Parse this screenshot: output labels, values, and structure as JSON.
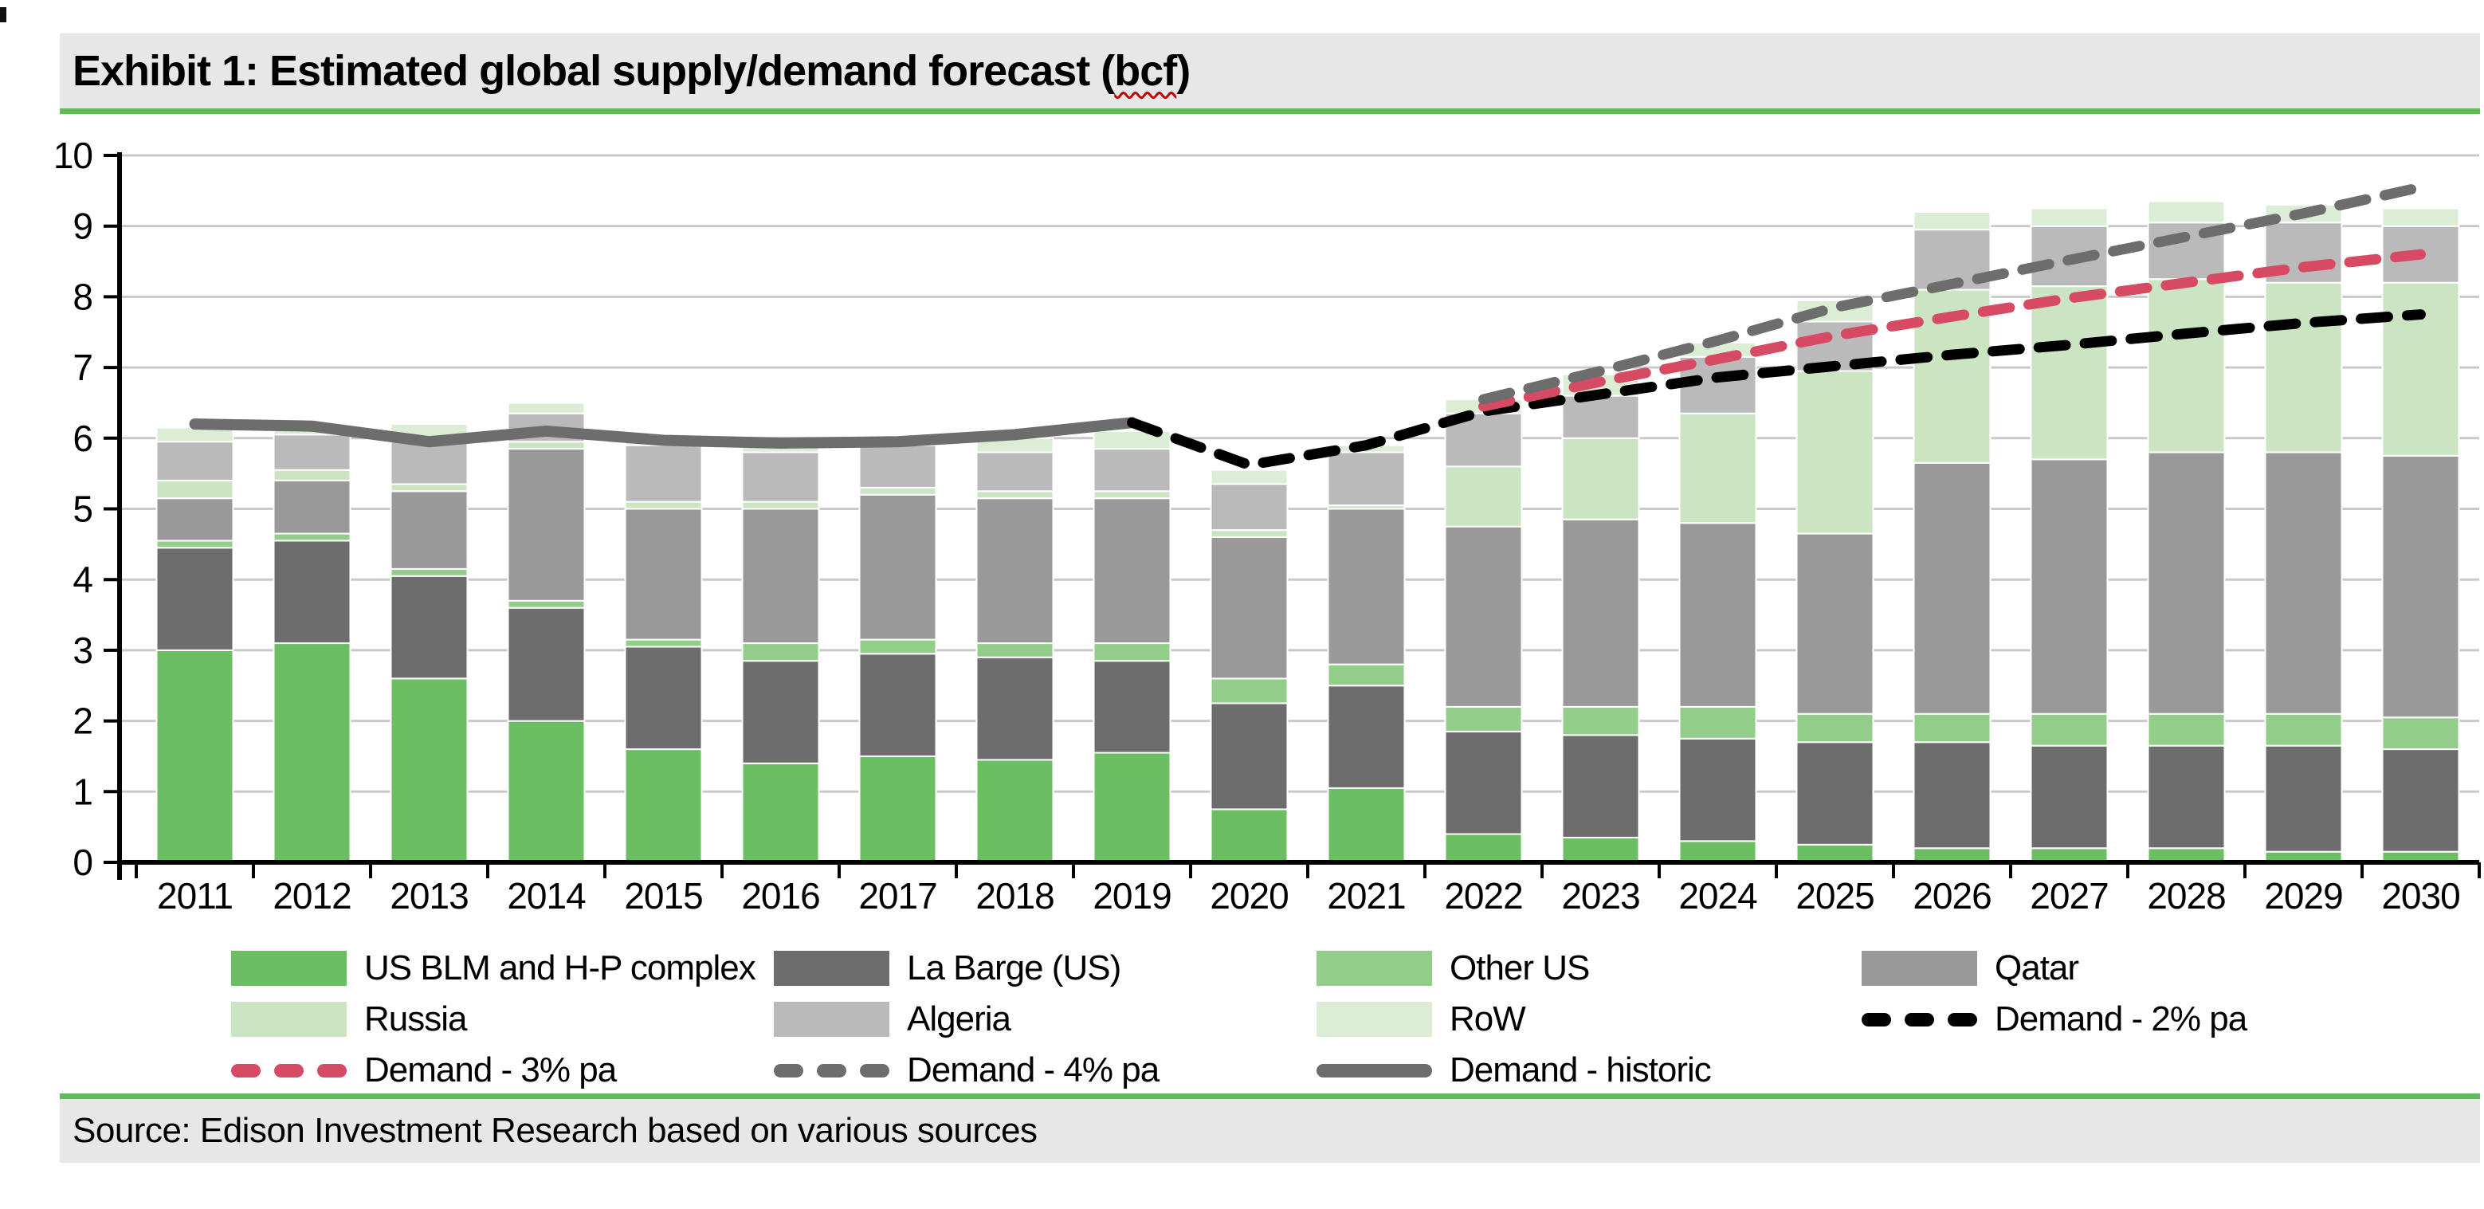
{
  "title": {
    "prefix": "Exhibit 1: Estimated global supply/demand forecast (",
    "underlined": "bcf",
    "suffix": ")"
  },
  "source": "Source: Edison Investment Research based on various sources",
  "colors": {
    "us_blm": "#6CBE63",
    "la_barge": "#6D6D6D",
    "other_us": "#92CE8A",
    "qatar": "#999999",
    "russia": "#CBE5C3",
    "algeria": "#BABABA",
    "row": "#DBEDD5",
    "demand_2pct": "#000000",
    "demand_3pct": "#D64A64",
    "demand_4pct": "#6D6D6D",
    "demand_historic": "#6D6D6D",
    "band_background": "#E7E7E7",
    "green_rule": "#62BA5A",
    "gridline": "#C9C9C9",
    "title_squiggle": "#C00000"
  },
  "chart_data": {
    "type": "bar",
    "subtype": "stacked-bars-with-demand-lines",
    "title": "Estimated global supply/demand forecast (bcf)",
    "xlabel": "",
    "ylabel": "",
    "ylim": [
      0,
      10
    ],
    "yticks": [
      0,
      1,
      2,
      3,
      4,
      5,
      6,
      7,
      8,
      9,
      10
    ],
    "grid": true,
    "legend_position": "bottom",
    "categories": [
      2011,
      2012,
      2013,
      2014,
      2015,
      2016,
      2017,
      2018,
      2019,
      2020,
      2021,
      2022,
      2023,
      2024,
      2025,
      2026,
      2027,
      2028,
      2029,
      2030
    ],
    "series": [
      {
        "name": "US BLM and H-P complex",
        "color": "#6CBE63",
        "values": [
          3.0,
          3.1,
          2.6,
          2.0,
          1.6,
          1.4,
          1.5,
          1.45,
          1.55,
          0.75,
          1.05,
          0.4,
          0.35,
          0.3,
          0.25,
          0.2,
          0.2,
          0.2,
          0.15,
          0.15
        ]
      },
      {
        "name": "La Barge (US)",
        "color": "#6D6D6D",
        "values": [
          1.45,
          1.45,
          1.45,
          1.6,
          1.45,
          1.45,
          1.45,
          1.45,
          1.3,
          1.5,
          1.45,
          1.45,
          1.45,
          1.45,
          1.45,
          1.5,
          1.45,
          1.45,
          1.5,
          1.45
        ]
      },
      {
        "name": "Other US",
        "color": "#92CE8A",
        "values": [
          0.1,
          0.1,
          0.1,
          0.1,
          0.1,
          0.25,
          0.2,
          0.2,
          0.25,
          0.35,
          0.3,
          0.35,
          0.4,
          0.45,
          0.4,
          0.4,
          0.45,
          0.45,
          0.45,
          0.45
        ]
      },
      {
        "name": "Qatar",
        "color": "#999999",
        "values": [
          0.6,
          0.75,
          1.1,
          2.15,
          1.85,
          1.9,
          2.05,
          2.05,
          2.05,
          2.0,
          2.2,
          2.55,
          2.65,
          2.6,
          2.55,
          3.55,
          3.6,
          3.7,
          3.7,
          3.7
        ]
      },
      {
        "name": "Russia",
        "color": "#CBE5C3",
        "values": [
          0.25,
          0.15,
          0.1,
          0.1,
          0.1,
          0.1,
          0.1,
          0.1,
          0.1,
          0.1,
          0.05,
          0.85,
          1.15,
          1.55,
          2.3,
          2.45,
          2.45,
          2.45,
          2.4,
          2.45
        ]
      },
      {
        "name": "Algeria",
        "color": "#BABABA",
        "values": [
          0.55,
          0.5,
          0.6,
          0.4,
          0.8,
          0.7,
          0.6,
          0.55,
          0.6,
          0.65,
          0.75,
          0.75,
          0.6,
          0.8,
          0.7,
          0.85,
          0.85,
          0.8,
          0.85,
          0.8
        ]
      },
      {
        "name": "RoW",
        "color": "#DBEDD5",
        "values": [
          0.2,
          0.1,
          0.25,
          0.15,
          0.1,
          0.15,
          0.1,
          0.2,
          0.25,
          0.2,
          0.1,
          0.2,
          0.3,
          0.2,
          0.3,
          0.25,
          0.25,
          0.3,
          0.25,
          0.25
        ]
      }
    ],
    "lines": [
      {
        "name": "Demand - historic",
        "color": "#6D6D6D",
        "style": "solid",
        "width": 14,
        "years": [
          2011,
          2012,
          2013,
          2014,
          2015,
          2016,
          2017,
          2018,
          2019
        ],
        "values": [
          6.2,
          6.17,
          5.95,
          6.1,
          5.97,
          5.93,
          5.95,
          6.05,
          6.22
        ]
      },
      {
        "name": "Demand - 2% pa",
        "color": "#000000",
        "style": "dashed",
        "width": 13,
        "years": [
          2019,
          2020,
          2021,
          2022,
          2023,
          2024,
          2025,
          2026,
          2027,
          2028,
          2029,
          2030
        ],
        "values": [
          6.22,
          5.62,
          5.9,
          6.38,
          6.62,
          6.86,
          7.02,
          7.18,
          7.32,
          7.48,
          7.63,
          7.75
        ]
      },
      {
        "name": "Demand - 3% pa",
        "color": "#D64A64",
        "style": "dashed",
        "width": 13,
        "years": [
          2022,
          2023,
          2024,
          2025,
          2026,
          2027,
          2028,
          2029,
          2030
        ],
        "values": [
          6.45,
          6.8,
          7.12,
          7.45,
          7.72,
          7.98,
          8.2,
          8.42,
          8.6
        ]
      },
      {
        "name": "Demand - 4% pa",
        "color": "#6D6D6D",
        "style": "dashed",
        "width": 13,
        "years": [
          2022,
          2023,
          2024,
          2025,
          2026,
          2027,
          2028,
          2029,
          2030
        ],
        "values": [
          6.55,
          6.95,
          7.38,
          7.85,
          8.18,
          8.52,
          8.85,
          9.18,
          9.55
        ]
      }
    ]
  },
  "legend": {
    "items": [
      {
        "label": "US BLM and H-P complex",
        "swatch": "bar",
        "color": "#6CBE63",
        "col": 0,
        "row": 0
      },
      {
        "label": "La Barge (US)",
        "swatch": "bar",
        "color": "#6D6D6D",
        "col": 1,
        "row": 0
      },
      {
        "label": "Other US",
        "swatch": "bar",
        "color": "#92CE8A",
        "col": 2,
        "row": 0
      },
      {
        "label": "Qatar",
        "swatch": "bar",
        "color": "#999999",
        "col": 3,
        "row": 0
      },
      {
        "label": "Russia",
        "swatch": "bar",
        "color": "#CBE5C3",
        "col": 0,
        "row": 1
      },
      {
        "label": "Algeria",
        "swatch": "bar",
        "color": "#BABABA",
        "col": 1,
        "row": 1
      },
      {
        "label": "RoW",
        "swatch": "bar",
        "color": "#DBEDD5",
        "col": 2,
        "row": 1
      },
      {
        "label": "Demand - 2% pa",
        "swatch": "dashed",
        "color": "#000000",
        "col": 3,
        "row": 1
      },
      {
        "label": "Demand - 3% pa",
        "swatch": "dashed",
        "color": "#D64A64",
        "col": 0,
        "row": 2
      },
      {
        "label": "Demand - 4% pa",
        "swatch": "dashed",
        "color": "#6D6D6D",
        "col": 1,
        "row": 2
      },
      {
        "label": "Demand - historic",
        "swatch": "solid",
        "color": "#6D6D6D",
        "col": 2,
        "row": 2
      }
    ]
  }
}
